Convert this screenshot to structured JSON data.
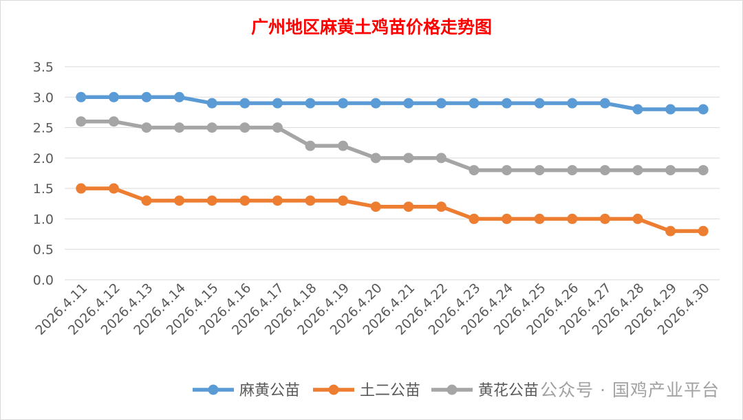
{
  "chart_data": {
    "type": "line",
    "title": "广州地区麻黄土鸡苗价格走势图",
    "xlabel": "",
    "ylabel": "",
    "categories": [
      "2026.4.11",
      "2026.4.12",
      "2026.4.13",
      "2026.4.14",
      "2026.4.15",
      "2026.4.16",
      "2026.4.17",
      "2026.4.18",
      "2026.4.19",
      "2026.4.20",
      "2026.4.21",
      "2026.4.22",
      "2026.4.23",
      "2026.4.24",
      "2026.4.25",
      "2026.4.26",
      "2026.4.27",
      "2026.4.28",
      "2026.4.29",
      "2026.4.30"
    ],
    "ylim": [
      0,
      3.5
    ],
    "yticks": [
      "0.0",
      "0.5",
      "1.0",
      "1.5",
      "2.0",
      "2.5",
      "3.0",
      "3.5"
    ],
    "grid": true,
    "legend_position": "bottom",
    "series": [
      {
        "name": "麻黄公苗",
        "color": "#5B9BD5",
        "values": [
          3.0,
          3.0,
          3.0,
          3.0,
          2.9,
          2.9,
          2.9,
          2.9,
          2.9,
          2.9,
          2.9,
          2.9,
          2.9,
          2.9,
          2.9,
          2.9,
          2.9,
          2.8,
          2.8,
          2.8
        ]
      },
      {
        "name": "土二公苗",
        "color": "#ED7D31",
        "values": [
          1.5,
          1.5,
          1.3,
          1.3,
          1.3,
          1.3,
          1.3,
          1.3,
          1.3,
          1.2,
          1.2,
          1.2,
          1.0,
          1.0,
          1.0,
          1.0,
          1.0,
          1.0,
          0.8,
          0.8
        ]
      },
      {
        "name": "黄花公苗",
        "color": "#A5A5A5",
        "values": [
          2.6,
          2.6,
          2.5,
          2.5,
          2.5,
          2.5,
          2.5,
          2.2,
          2.2,
          2.0,
          2.0,
          2.0,
          1.8,
          1.8,
          1.8,
          1.8,
          1.8,
          1.8,
          1.8,
          1.8
        ]
      }
    ],
    "title_color": "#FF0000"
  },
  "watermark": "公众号 · 国鸡产业平台"
}
